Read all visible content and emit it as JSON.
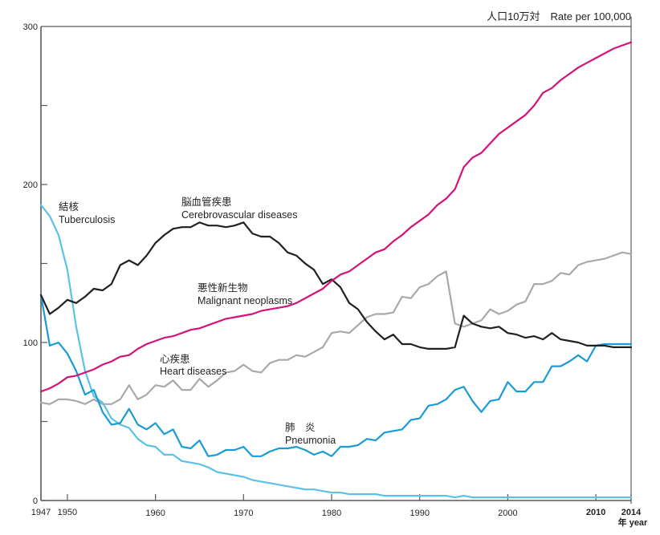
{
  "chart_data": {
    "type": "line",
    "title": "",
    "unit_label": "人口10万対　Rate per 100,000",
    "xlabel": "年 year",
    "ylabel": "",
    "xlim": [
      1947,
      2014
    ],
    "ylim": [
      0,
      300
    ],
    "grid": false,
    "x_ticks": [
      1947,
      1950,
      1960,
      1970,
      1980,
      1990,
      2000,
      2010,
      2014
    ],
    "x_tick_labels": [
      "1947",
      "1950",
      "1960",
      "1970",
      "1980",
      "1990",
      "2000",
      "2010",
      "2014"
    ],
    "y_ticks": [
      0,
      100,
      200,
      300
    ],
    "y_tick_labels": [
      "0",
      "100",
      "200",
      "300"
    ],
    "y_minor_ticks": [
      50,
      150,
      250
    ],
    "x": [
      1947,
      1948,
      1949,
      1950,
      1951,
      1952,
      1953,
      1954,
      1955,
      1956,
      1957,
      1958,
      1959,
      1960,
      1961,
      1962,
      1963,
      1964,
      1965,
      1966,
      1967,
      1968,
      1969,
      1970,
      1971,
      1972,
      1973,
      1974,
      1975,
      1976,
      1977,
      1978,
      1979,
      1980,
      1981,
      1982,
      1983,
      1984,
      1985,
      1986,
      1987,
      1988,
      1989,
      1990,
      1991,
      1992,
      1993,
      1994,
      1995,
      1996,
      1997,
      1998,
      1999,
      2000,
      2001,
      2002,
      2003,
      2004,
      2005,
      2006,
      2007,
      2008,
      2009,
      2010,
      2011,
      2012,
      2013,
      2014
    ],
    "series": [
      {
        "name": "Malignant neoplasms",
        "label_ja": "悪性新生物",
        "color": "#d3127a",
        "values": [
          69,
          71,
          74,
          78,
          79,
          81,
          83,
          86,
          88,
          91,
          92,
          96,
          99,
          101,
          103,
          104,
          106,
          108,
          109,
          111,
          113,
          115,
          116,
          117,
          118,
          120,
          121,
          122,
          123,
          125,
          128,
          131,
          134,
          139,
          143,
          145,
          149,
          153,
          157,
          159,
          164,
          168,
          173,
          177,
          181,
          187,
          191,
          197,
          211,
          217,
          220,
          226,
          232,
          236,
          240,
          244,
          250,
          258,
          261,
          266,
          270,
          274,
          277,
          280,
          283,
          286,
          288,
          290
        ]
      },
      {
        "name": "Cerebrovascular diseases",
        "label_ja": "脳血管疾患",
        "color": "#231f20",
        "values": [
          130,
          118,
          122,
          127,
          125,
          129,
          134,
          133,
          137,
          149,
          152,
          149,
          155,
          163,
          168,
          172,
          173,
          173,
          176,
          174,
          174,
          173,
          174,
          176,
          169,
          167,
          167,
          163,
          157,
          155,
          150,
          146,
          137,
          140,
          135,
          125,
          121,
          113,
          107,
          102,
          105,
          99,
          99,
          97,
          96,
          96,
          96,
          97,
          117,
          112,
          110,
          109,
          110,
          106,
          105,
          103,
          104,
          102,
          106,
          102,
          101,
          100,
          98,
          98,
          98,
          97,
          97,
          97
        ]
      },
      {
        "name": "Heart diseases",
        "label_ja": "心疾患",
        "color": "#a7a9ac",
        "values": [
          62,
          61,
          64,
          64,
          63,
          61,
          64,
          61,
          61,
          64,
          73,
          64,
          67,
          73,
          72,
          76,
          70,
          70,
          77,
          72,
          76,
          81,
          82,
          86,
          82,
          81,
          87,
          89,
          89,
          92,
          91,
          94,
          97,
          106,
          107,
          106,
          111,
          116,
          118,
          118,
          119,
          129,
          128,
          135,
          137,
          142,
          145,
          112,
          110,
          112,
          114,
          121,
          118,
          120,
          124,
          126,
          137,
          137,
          139,
          144,
          143,
          149,
          151,
          152,
          153,
          155,
          157,
          156
        ]
      },
      {
        "name": "Pneumonia",
        "label_ja": "肺炎",
        "color": "#1a9bd7",
        "values": [
          130,
          98,
          100,
          93,
          82,
          67,
          70,
          56,
          48,
          49,
          58,
          48,
          45,
          49,
          42,
          45,
          34,
          33,
          38,
          28,
          29,
          32,
          32,
          34,
          28,
          28,
          31,
          33,
          33,
          34,
          32,
          29,
          31,
          28,
          34,
          34,
          35,
          39,
          38,
          43,
          44,
          45,
          51,
          52,
          60,
          61,
          64,
          70,
          72,
          63,
          56,
          63,
          64,
          75,
          69,
          69,
          75,
          75,
          85,
          85,
          88,
          92,
          88,
          98,
          99,
          99,
          99,
          99
        ]
      },
      {
        "name": "Tuberculosis",
        "label_ja": "結核",
        "color": "#5bc2e7",
        "values": [
          187,
          180,
          168,
          146,
          110,
          82,
          66,
          62,
          52,
          48,
          46,
          39,
          35,
          34,
          29,
          29,
          25,
          24,
          23,
          21,
          18,
          17,
          16,
          15,
          13,
          12,
          11,
          10,
          9,
          8,
          7,
          7,
          6,
          5,
          5,
          4,
          4,
          4,
          4,
          3,
          3,
          3,
          3,
          3,
          3,
          3,
          3,
          2,
          3,
          2,
          2,
          2,
          2,
          2,
          2,
          2,
          2,
          2,
          2,
          2,
          2,
          2,
          2,
          2,
          2,
          2,
          2,
          2
        ]
      }
    ],
    "annotations": [
      {
        "series": "Tuberculosis",
        "ja": "結核",
        "en": "Tuberculosis"
      },
      {
        "series": "Cerebrovascular diseases",
        "ja": "脳血管疾患",
        "en": "Cerebrovascular diseases"
      },
      {
        "series": "Malignant neoplasms",
        "ja": "悪性新生物",
        "en": "Malignant neoplasms"
      },
      {
        "series": "Heart diseases",
        "ja": "心疾患",
        "en": "Heart diseases"
      },
      {
        "series": "Pneumonia",
        "ja": "肺　炎",
        "en": "Pneumonia"
      }
    ],
    "legend": "inline-annotations"
  }
}
